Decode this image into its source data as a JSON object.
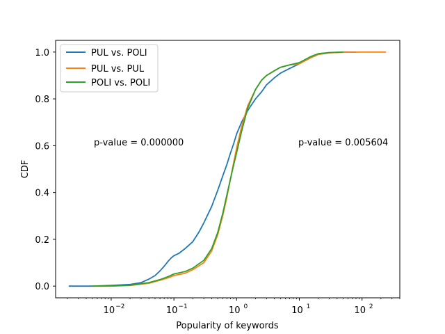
{
  "chart_data": {
    "type": "line",
    "title": "",
    "xlabel": "Popularity of keywords",
    "ylabel": "CDF",
    "xscale": "log",
    "xlim": [
      0.0013,
      400
    ],
    "ylim": [
      -0.05,
      1.05
    ],
    "x_ticks": [
      0.01,
      0.1,
      1,
      10,
      100
    ],
    "x_tick_labels": [
      "10",
      "10",
      "10",
      "10",
      "10"
    ],
    "x_tick_exponents": [
      "−2",
      "−1",
      "0",
      "1",
      "2"
    ],
    "y_ticks": [
      0.0,
      0.2,
      0.4,
      0.6,
      0.8,
      1.0
    ],
    "y_tick_labels": [
      "0.0",
      "0.2",
      "0.4",
      "0.6",
      "0.8",
      "1.0"
    ],
    "grid": false,
    "legend_position": "top-left",
    "annotations": [
      {
        "text": "p-value = 0.000000",
        "x": 0.005,
        "y": 0.6
      },
      {
        "text": "p-value = 0.005604",
        "x": 10,
        "y": 0.6
      }
    ],
    "series": [
      {
        "name": "PUL vs. POLI",
        "color": "#1f77b4",
        "x": [
          0.0021,
          0.005,
          0.01,
          0.02,
          0.03,
          0.04,
          0.05,
          0.06,
          0.07,
          0.08,
          0.09,
          0.1,
          0.12,
          0.15,
          0.2,
          0.25,
          0.3,
          0.4,
          0.5,
          0.6,
          0.7,
          0.8,
          0.9,
          1.0,
          1.2,
          1.5,
          2.0,
          2.5,
          3.0,
          4.0,
          5.0,
          7.0,
          10.0,
          15.0,
          20.0,
          30.0,
          50.0,
          80.0
        ],
        "y": [
          0.0,
          0.0,
          0.003,
          0.007,
          0.015,
          0.03,
          0.045,
          0.065,
          0.085,
          0.105,
          0.12,
          0.13,
          0.14,
          0.16,
          0.19,
          0.23,
          0.27,
          0.34,
          0.41,
          0.47,
          0.52,
          0.57,
          0.61,
          0.65,
          0.7,
          0.75,
          0.8,
          0.83,
          0.86,
          0.89,
          0.91,
          0.93,
          0.95,
          0.975,
          0.99,
          0.997,
          1.0,
          1.0
        ]
      },
      {
        "name": "PUL vs. PUL",
        "color": "#ff7f0e",
        "x": [
          0.005,
          0.01,
          0.02,
          0.04,
          0.06,
          0.08,
          0.1,
          0.15,
          0.2,
          0.3,
          0.4,
          0.5,
          0.6,
          0.7,
          0.8,
          0.9,
          1.0,
          1.2,
          1.5,
          2.0,
          2.5,
          3.0,
          4.0,
          5.0,
          7.0,
          10.0,
          15.0,
          20.0,
          30.0,
          50.0,
          100.0,
          240.0
        ],
        "y": [
          0.0,
          0.0,
          0.003,
          0.012,
          0.025,
          0.035,
          0.045,
          0.055,
          0.07,
          0.1,
          0.15,
          0.22,
          0.3,
          0.38,
          0.46,
          0.53,
          0.59,
          0.68,
          0.77,
          0.84,
          0.88,
          0.9,
          0.92,
          0.935,
          0.945,
          0.95,
          0.975,
          0.99,
          0.997,
          0.999,
          1.0,
          1.0
        ]
      },
      {
        "name": "POLI vs. POLI",
        "color": "#2ca02c",
        "x": [
          0.005,
          0.01,
          0.02,
          0.04,
          0.06,
          0.08,
          0.1,
          0.15,
          0.2,
          0.3,
          0.4,
          0.5,
          0.6,
          0.7,
          0.8,
          0.9,
          1.0,
          1.2,
          1.5,
          2.0,
          2.5,
          3.0,
          4.0,
          5.0,
          7.0,
          10.0,
          15.0,
          20.0,
          30.0,
          50.0
        ],
        "y": [
          0.0,
          0.001,
          0.004,
          0.015,
          0.028,
          0.04,
          0.052,
          0.062,
          0.077,
          0.11,
          0.16,
          0.23,
          0.31,
          0.39,
          0.46,
          0.52,
          0.57,
          0.66,
          0.76,
          0.84,
          0.88,
          0.9,
          0.92,
          0.935,
          0.945,
          0.955,
          0.98,
          0.993,
          0.998,
          1.0
        ]
      }
    ]
  }
}
